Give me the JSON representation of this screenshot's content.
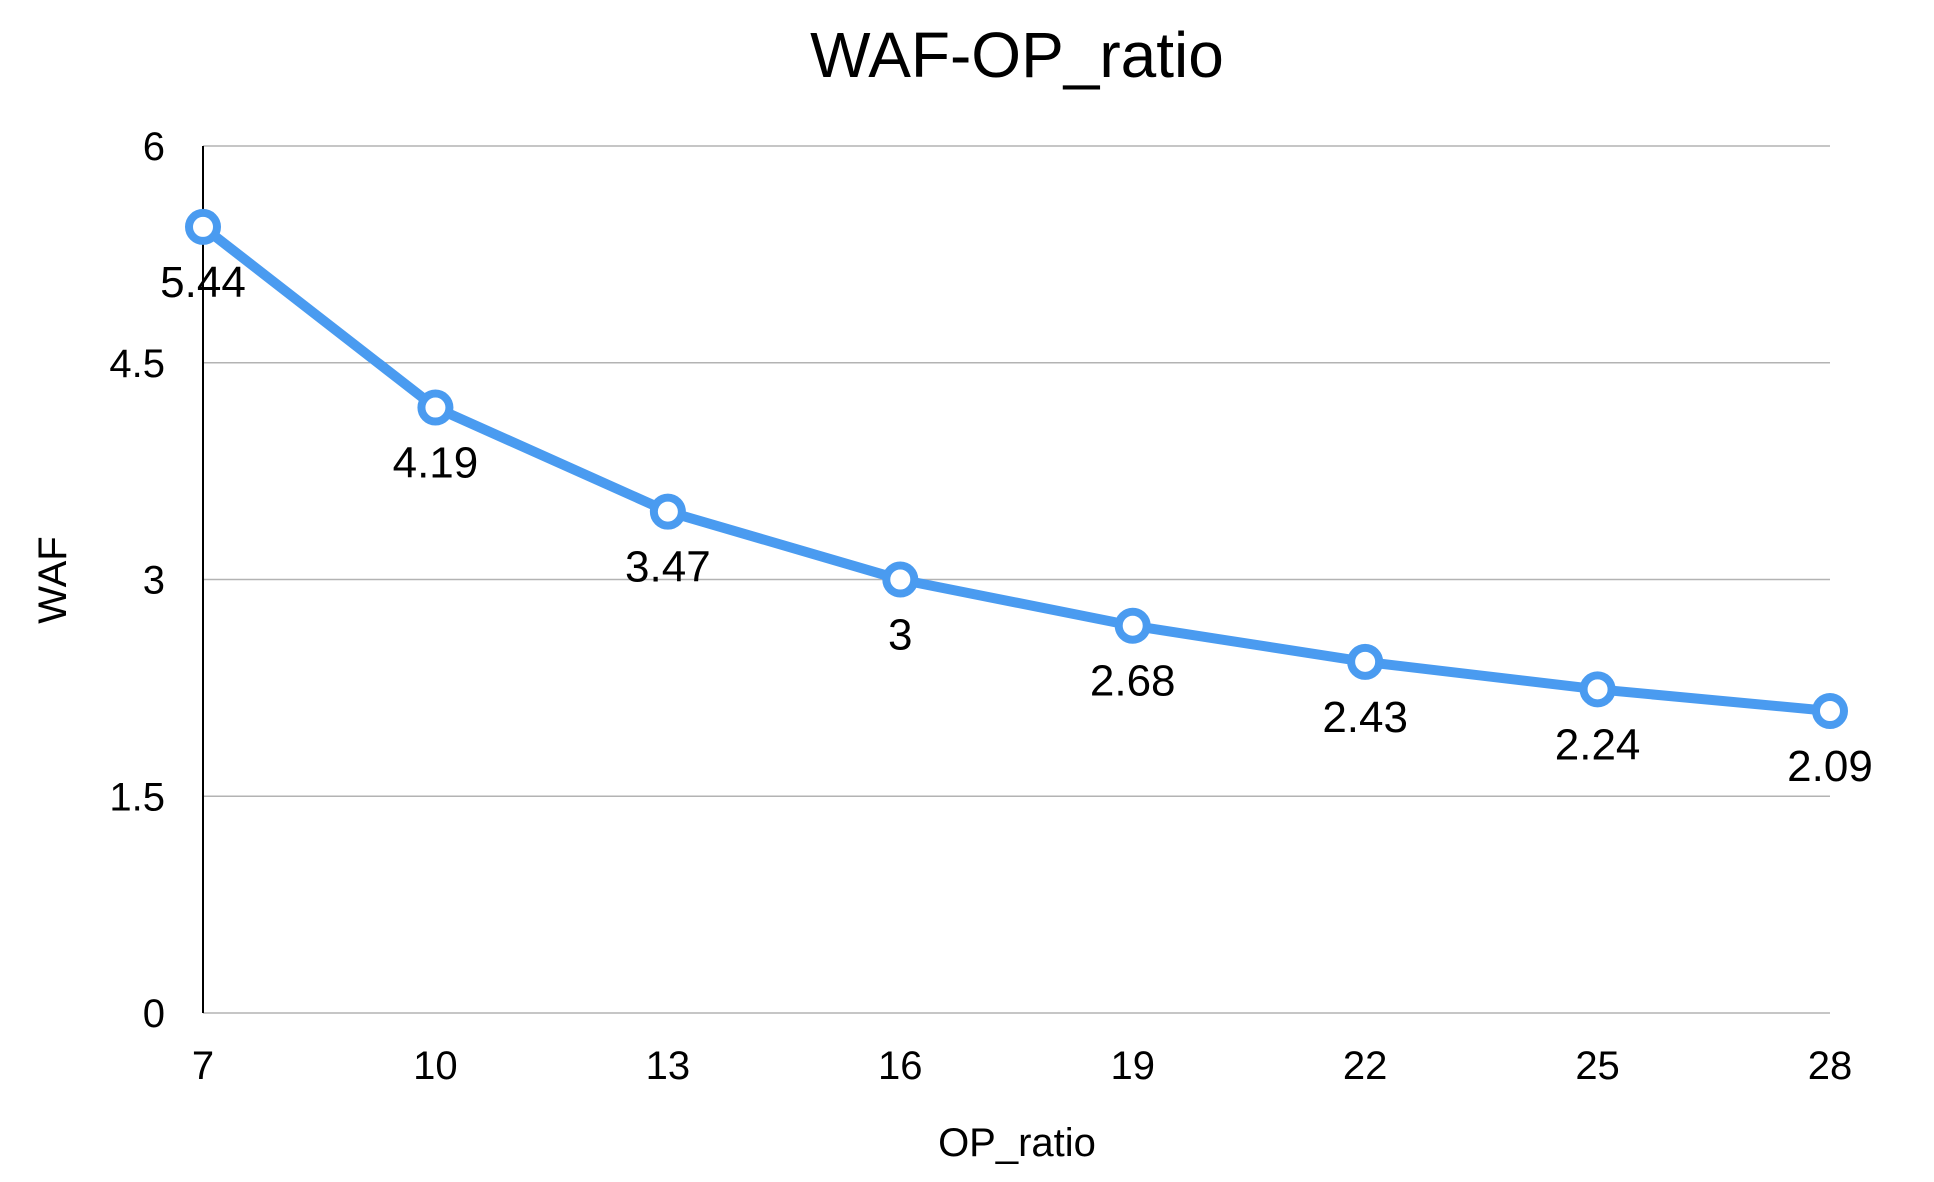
{
  "chart_data": {
    "type": "line",
    "title": "WAF-OP_ratio",
    "xlabel": "OP_ratio",
    "ylabel": "WAF",
    "categories": [
      "7",
      "10",
      "13",
      "16",
      "19",
      "22",
      "25",
      "28"
    ],
    "x": [
      7,
      10,
      13,
      16,
      19,
      22,
      25,
      28
    ],
    "series": [
      {
        "values": [
          5.44,
          4.19,
          3.47,
          3,
          2.68,
          2.43,
          2.24,
          2.09
        ],
        "labels": [
          "5.44",
          "4.19",
          "3.47",
          "3",
          "2.68",
          "2.43",
          "2.24",
          "2.09"
        ],
        "color": "#4a9bf0"
      }
    ],
    "ylim": [
      0,
      6
    ],
    "yticks": [
      0,
      1.5,
      3,
      4.5,
      6
    ],
    "ytick_labels": [
      "0",
      "1.5",
      "3",
      "4.5",
      "6"
    ],
    "grid": true,
    "legend": false,
    "colors": {
      "line": "#4a9bf0",
      "grid": "#b3b3b3",
      "marker_fill": "#ffffff"
    }
  }
}
